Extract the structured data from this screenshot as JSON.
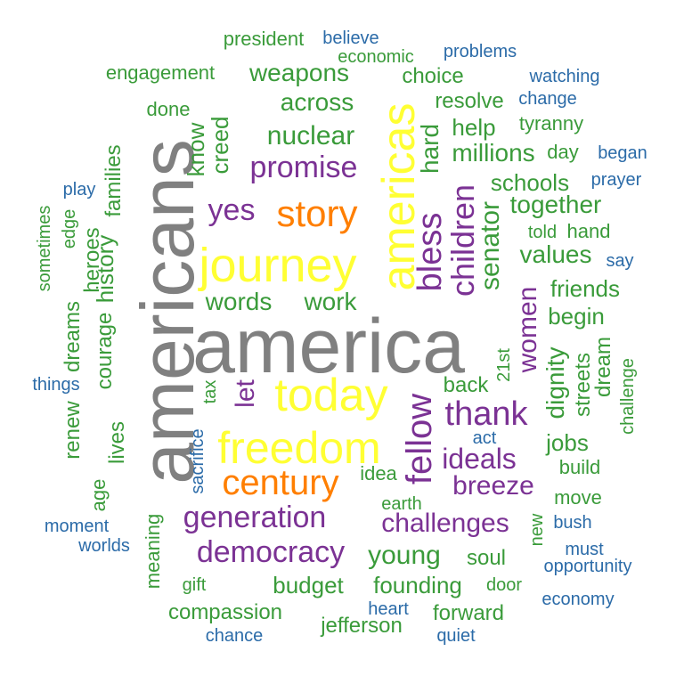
{
  "palette": {
    "grey": "#808080",
    "yellow": "#ffff33",
    "orange": "#ff7f00",
    "purple": "#7b3294",
    "green": "#3a9b3a",
    "blue": "#2b6ba8"
  },
  "words": {
    "america": "america",
    "americans": "americans",
    "americas": "americas",
    "journey": "journey",
    "today": "today",
    "freedom": "freedom",
    "story": "story",
    "century": "century",
    "fellow": "fellow",
    "promise": "promise",
    "yes": "yes",
    "thank": "thank",
    "generation": "generation",
    "democracy": "democracy",
    "children": "children",
    "bless": "bless",
    "women": "women",
    "ideals": "ideals",
    "breeze": "breeze",
    "challenges": "challenges",
    "let": "let",
    "nuclear": "nuclear",
    "weapons": "weapons",
    "across": "across",
    "millions": "millions",
    "schools": "schools",
    "together": "together",
    "values": "values",
    "senator": "senator",
    "hard": "hard",
    "help": "help",
    "resolve": "resolve",
    "choice": "choice",
    "words": "words",
    "work": "work",
    "young": "young",
    "budget": "budget",
    "founding": "founding",
    "soul": "soul",
    "jobs": "jobs",
    "dignity": "dignity",
    "friends": "friends",
    "begin": "begin",
    "back": "back",
    "streets": "streets",
    "dream": "dream",
    "challenge": "challenge",
    "build": "build",
    "move": "move",
    "new": "new",
    "compassion": "compassion",
    "jefferson": "jefferson",
    "forward": "forward",
    "door": "door",
    "gift": "gift",
    "meaning": "meaning",
    "age": "age",
    "lives": "lives",
    "renew": "renew",
    "dreams": "dreams",
    "courage": "courage",
    "history": "history",
    "heroes": "heroes",
    "families": "families",
    "edge": "edge",
    "sometimes": "sometimes",
    "creed": "creed",
    "know": "know",
    "done": "done",
    "engagement": "engagement",
    "president": "president",
    "tyranny": "tyranny",
    "day": "day",
    "told": "told",
    "hand": "hand",
    "21st": "21st",
    "tax": "tax",
    "idea": "idea",
    "earth": "earth",
    "believe": "believe",
    "economic": "economic",
    "problems": "problems",
    "watching": "watching",
    "change": "change",
    "began": "began",
    "prayer": "prayer",
    "say": "say",
    "play": "play",
    "things": "things",
    "act": "act",
    "sacrifice": "sacrifice",
    "moment": "moment",
    "worlds": "worlds",
    "bush": "bush",
    "must": "must",
    "opportunity": "opportunity",
    "economy": "economy",
    "heart": "heart",
    "chance": "chance",
    "quiet": "quiet"
  }
}
